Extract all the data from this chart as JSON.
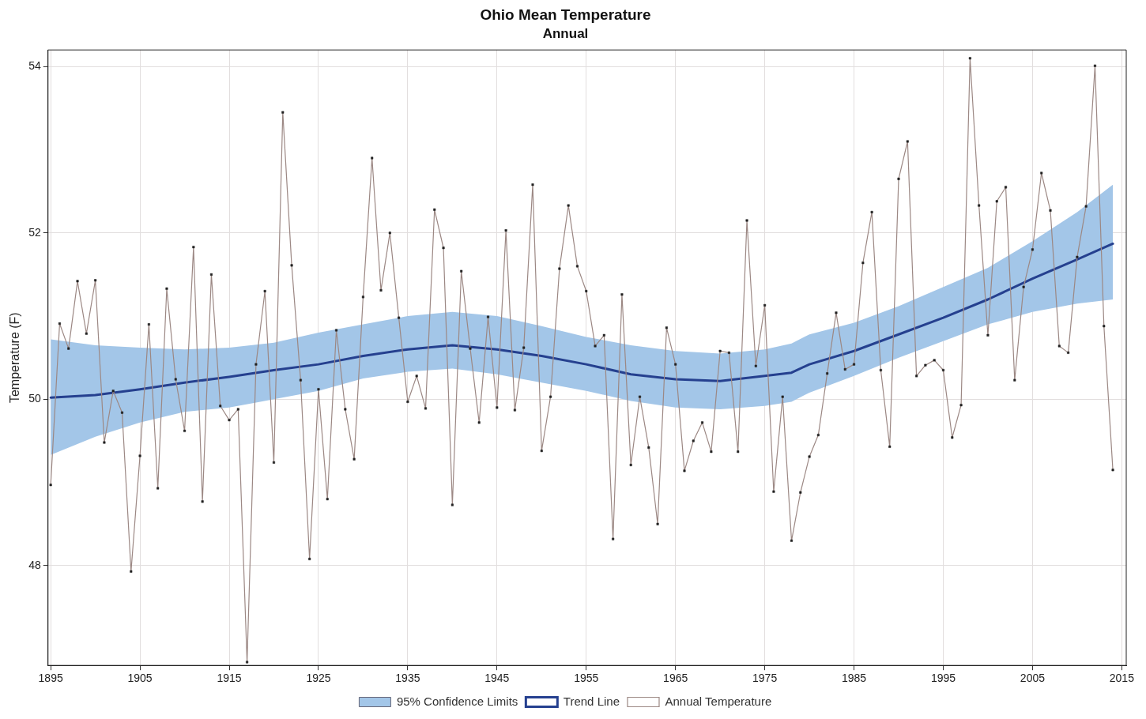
{
  "chart_data": {
    "type": "line",
    "title": "Ohio Mean Temperature",
    "subtitle": "Annual",
    "ylabel": "Temperature (F)",
    "xlim": [
      1894.7,
      2015.5
    ],
    "xticks": [
      1895,
      1905,
      1915,
      1925,
      1935,
      1945,
      1955,
      1965,
      1975,
      1985,
      1995,
      2005,
      2015
    ],
    "ylim": [
      46.8,
      54.2
    ],
    "yticks": [
      48,
      50,
      52,
      54
    ],
    "grid": true,
    "legend": "bottom",
    "series": [
      {
        "name": "95% Confidence Limits",
        "type": "area",
        "color": "#a3c6e8"
      },
      {
        "name": "Trend Line",
        "type": "line",
        "color": "#25408f",
        "marker": "none",
        "x": [
          1895,
          1900,
          1905,
          1910,
          1915,
          1920,
          1925,
          1930,
          1935,
          1940,
          1945,
          1950,
          1955,
          1960,
          1965,
          1970,
          1975,
          1978,
          1980,
          1985,
          1990,
          1995,
          2000,
          2005,
          2010,
          2014
        ],
        "lower": [
          49.33,
          49.55,
          49.72,
          49.85,
          49.9,
          50.0,
          50.1,
          50.25,
          50.33,
          50.37,
          50.3,
          50.2,
          50.1,
          49.98,
          49.9,
          49.88,
          49.92,
          49.97,
          50.08,
          50.28,
          50.5,
          50.7,
          50.9,
          51.05,
          51.15,
          51.2
        ],
        "upper": [
          50.72,
          50.65,
          50.62,
          50.6,
          50.62,
          50.68,
          50.8,
          50.9,
          51.0,
          51.05,
          51.0,
          50.88,
          50.75,
          50.65,
          50.58,
          50.55,
          50.6,
          50.67,
          50.78,
          50.92,
          51.12,
          51.35,
          51.58,
          51.9,
          52.25,
          52.58
        ],
        "values": [
          50.02,
          50.05,
          50.12,
          50.2,
          50.27,
          50.35,
          50.42,
          50.52,
          50.6,
          50.65,
          50.6,
          50.52,
          50.42,
          50.3,
          50.24,
          50.22,
          50.28,
          50.32,
          50.42,
          50.58,
          50.78,
          50.98,
          51.2,
          51.45,
          51.68,
          51.87
        ]
      },
      {
        "name": "Annual Temperature",
        "type": "line",
        "color": "#9c8884",
        "marker": "square",
        "x": [
          1895,
          1896,
          1897,
          1898,
          1899,
          1900,
          1901,
          1902,
          1903,
          1904,
          1905,
          1906,
          1907,
          1908,
          1909,
          1910,
          1911,
          1912,
          1913,
          1914,
          1915,
          1916,
          1917,
          1918,
          1919,
          1920,
          1921,
          1922,
          1923,
          1924,
          1925,
          1926,
          1927,
          1928,
          1929,
          1930,
          1931,
          1932,
          1933,
          1934,
          1935,
          1936,
          1937,
          1938,
          1939,
          1940,
          1941,
          1942,
          1943,
          1944,
          1945,
          1946,
          1947,
          1948,
          1949,
          1950,
          1951,
          1952,
          1953,
          1954,
          1955,
          1956,
          1957,
          1958,
          1959,
          1960,
          1961,
          1962,
          1963,
          1964,
          1965,
          1966,
          1967,
          1968,
          1969,
          1970,
          1971,
          1972,
          1973,
          1974,
          1975,
          1976,
          1977,
          1978,
          1979,
          1980,
          1981,
          1982,
          1983,
          1984,
          1985,
          1986,
          1987,
          1988,
          1989,
          1990,
          1991,
          1992,
          1993,
          1994,
          1995,
          1996,
          1997,
          1998,
          1999,
          2000,
          2001,
          2002,
          2003,
          2004,
          2005,
          2006,
          2007,
          2008,
          2009,
          2010,
          2011,
          2012,
          2013,
          2014
        ],
        "values": [
          48.97,
          50.91,
          50.61,
          51.42,
          50.79,
          51.43,
          49.48,
          50.1,
          49.84,
          47.93,
          49.32,
          50.9,
          48.93,
          51.33,
          50.24,
          49.62,
          51.83,
          48.77,
          51.5,
          49.92,
          49.75,
          49.88,
          46.84,
          50.42,
          51.3,
          49.24,
          53.45,
          51.61,
          50.23,
          48.08,
          50.12,
          48.8,
          50.83,
          49.88,
          49.28,
          51.23,
          52.9,
          51.31,
          52.0,
          50.98,
          49.97,
          50.28,
          49.89,
          52.28,
          51.82,
          48.73,
          51.54,
          50.61,
          49.72,
          50.99,
          49.9,
          52.03,
          49.87,
          50.62,
          52.58,
          49.38,
          50.03,
          51.57,
          52.33,
          51.6,
          51.3,
          50.64,
          50.77,
          48.32,
          51.26,
          49.21,
          50.03,
          49.42,
          48.5,
          50.86,
          50.42,
          49.14,
          49.5,
          49.72,
          49.37,
          50.58,
          50.56,
          49.37,
          52.15,
          50.4,
          51.13,
          48.89,
          50.03,
          48.3,
          48.88,
          49.31,
          49.57,
          50.31,
          51.04,
          50.36,
          50.42,
          51.64,
          52.25,
          50.35,
          49.43,
          52.65,
          53.1,
          50.28,
          50.41,
          50.47,
          50.35,
          49.54,
          49.93,
          54.1,
          52.33,
          50.77,
          52.38,
          52.55,
          50.23,
          51.35,
          51.8,
          52.72,
          52.27,
          50.64,
          50.56,
          51.71,
          52.32,
          54.01,
          50.88,
          49.15
        ]
      }
    ]
  }
}
